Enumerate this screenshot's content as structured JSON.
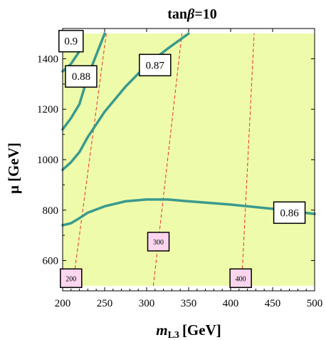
{
  "chart_data": {
    "type": "contour",
    "title": "tanβ=10",
    "title_parts": [
      "tan",
      "β",
      "=10"
    ],
    "xlabel": "m",
    "xlabel_sub": "L3",
    "xlabel_unit": "[GeV]",
    "ylabel": "μ [GeV]",
    "xlim": [
      200,
      500
    ],
    "ylim": [
      480,
      1520
    ],
    "xticks": [
      "200",
      "250",
      "300",
      "350",
      "400",
      "450",
      "500"
    ],
    "yticks": [
      "600",
      "800",
      "1000",
      "1200",
      "1400"
    ],
    "colors": {
      "allowed_region": "#eefbaa",
      "contour": "#3a9a8e",
      "mass_line": "#e83030",
      "mass_label_bg": "#fbd6ee",
      "frame": "#000000"
    },
    "contours": [
      {
        "label": "0.86",
        "points": [
          [
            200,
            740
          ],
          [
            210,
            748
          ],
          [
            220,
            768
          ],
          [
            230,
            790
          ],
          [
            250,
            815
          ],
          [
            275,
            835
          ],
          [
            300,
            842
          ],
          [
            325,
            842
          ],
          [
            350,
            835
          ],
          [
            400,
            822
          ],
          [
            450,
            805
          ],
          [
            500,
            785
          ]
        ]
      },
      {
        "label": "0.87",
        "points": [
          [
            200,
            960
          ],
          [
            210,
            990
          ],
          [
            220,
            1030
          ],
          [
            230,
            1090
          ],
          [
            250,
            1190
          ],
          [
            275,
            1290
          ],
          [
            300,
            1375
          ],
          [
            325,
            1440
          ],
          [
            350,
            1500
          ]
        ]
      },
      {
        "label": "0.88",
        "points": [
          [
            200,
            1120
          ],
          [
            210,
            1165
          ],
          [
            220,
            1220
          ],
          [
            230,
            1330
          ],
          [
            250,
            1500
          ]
        ]
      },
      {
        "label": "0.9",
        "points": [
          [
            200,
            1350
          ],
          [
            210,
            1380
          ],
          [
            220,
            1430
          ]
        ]
      }
    ],
    "contour_labels": [
      {
        "text": "0.86",
        "x": 470,
        "y": 790
      },
      {
        "text": "0.87",
        "x": 310,
        "y": 1375
      },
      {
        "text": "0.88",
        "x": 222,
        "y": 1330
      },
      {
        "text": "0.9",
        "x": 210,
        "y": 1470
      }
    ],
    "mass_lines": [
      {
        "label": "200",
        "points": [
          [
            212,
            500
          ],
          [
            252,
            1500
          ]
        ],
        "label_at": [
          210,
          530
        ]
      },
      {
        "label": "300",
        "points": [
          [
            308,
            500
          ],
          [
            342,
            1500
          ]
        ],
        "label_at": [
          314,
          675
        ]
      },
      {
        "label": "400",
        "points": [
          [
            413,
            500
          ],
          [
            428,
            1500
          ]
        ],
        "label_at": [
          412,
          530
        ]
      }
    ],
    "grid": false,
    "legend": "none"
  }
}
